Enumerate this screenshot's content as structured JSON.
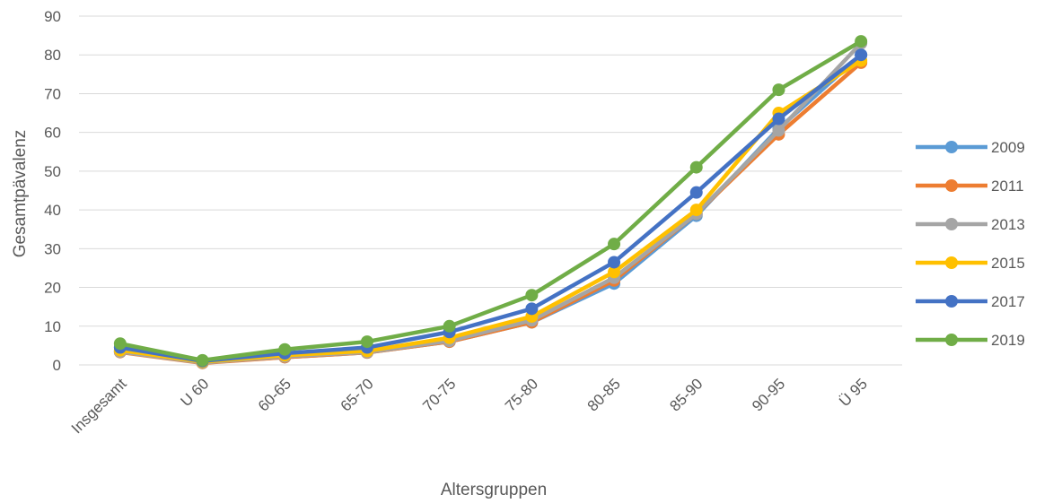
{
  "chart_data": {
    "type": "line",
    "title": "",
    "xlabel": "Altersgruppen",
    "ylabel": "Gesamtpävalenz",
    "ylim": [
      0,
      90
    ],
    "yticks": [
      0,
      10,
      20,
      30,
      40,
      50,
      60,
      70,
      80,
      90
    ],
    "grid": true,
    "legend_position": "right",
    "categories": [
      "Insgesamt",
      "U 60",
      "60-65",
      "65-70",
      "70-75",
      "75-80",
      "80-85",
      "85-90",
      "90-95",
      "Ü 95"
    ],
    "series": [
      {
        "name": "2009",
        "color": "#5B9BD5",
        "values": [
          3.5,
          0.6,
          2.0,
          3.2,
          6.0,
          11.0,
          21.0,
          38.5,
          61.0,
          80.0
        ]
      },
      {
        "name": "2011",
        "color": "#ED7D31",
        "values": [
          3.3,
          0.5,
          2.0,
          3.2,
          6.0,
          11.0,
          21.8,
          39.0,
          59.5,
          78.0
        ]
      },
      {
        "name": "2013",
        "color": "#A5A5A5",
        "values": [
          3.4,
          0.6,
          2.2,
          3.3,
          6.2,
          11.5,
          22.5,
          39.0,
          60.5,
          83.0
        ]
      },
      {
        "name": "2015",
        "color": "#FFC000",
        "values": [
          3.8,
          0.8,
          2.5,
          3.6,
          7.0,
          12.5,
          24.0,
          40.0,
          65.0,
          78.5
        ]
      },
      {
        "name": "2017",
        "color": "#4472C4",
        "values": [
          4.5,
          1.0,
          3.0,
          4.5,
          8.5,
          14.5,
          26.5,
          44.5,
          63.5,
          80.0
        ]
      },
      {
        "name": "2019",
        "color": "#70AD47",
        "values": [
          5.5,
          1.2,
          4.0,
          6.0,
          10.0,
          18.0,
          31.2,
          51.0,
          71.0,
          83.5
        ]
      }
    ]
  }
}
